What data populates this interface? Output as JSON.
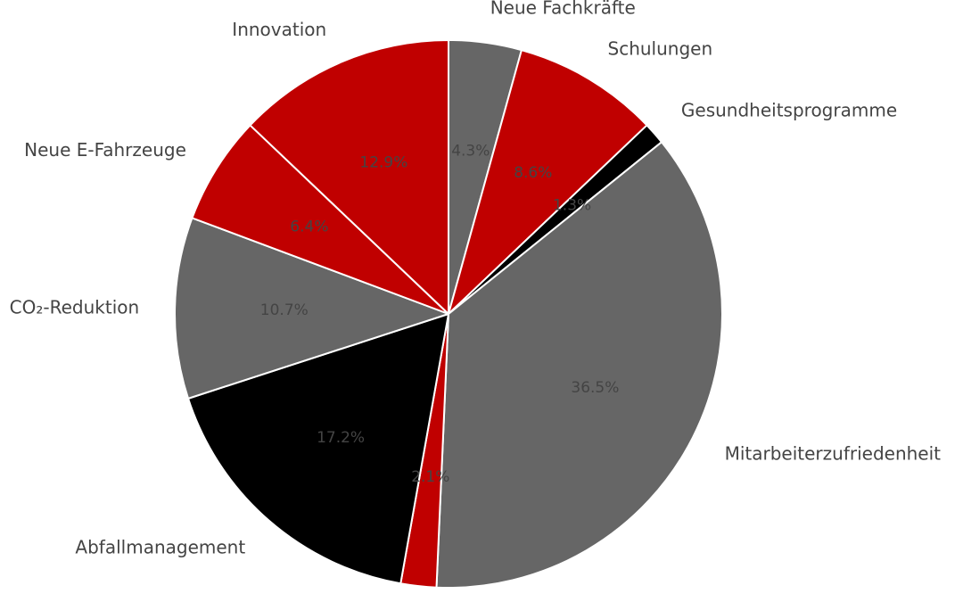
{
  "chart_data": {
    "type": "pie",
    "start_angle_deg": 90,
    "direction": "clockwise",
    "slices": [
      {
        "label": "Neue Fachkräfte",
        "value": 4.3,
        "pct_label": "4.3%",
        "color": "#666666"
      },
      {
        "label": "Schulungen",
        "value": 8.6,
        "pct_label": "8.6%",
        "color": "#c00000"
      },
      {
        "label": "Gesundheitsprogramme",
        "value": 1.3,
        "pct_label": "1.3%",
        "color": "#000000"
      },
      {
        "label": "Mitarbeiterzufriedenheit",
        "value": 36.5,
        "pct_label": "36.5%",
        "color": "#666666"
      },
      {
        "label": "",
        "value": 2.1,
        "pct_label": "2.1%",
        "color": "#c00000"
      },
      {
        "label": "Abfallmanagement",
        "value": 17.2,
        "pct_label": "17.2%",
        "color": "#000000"
      },
      {
        "label": "CO₂-Reduktion",
        "value": 10.7,
        "pct_label": "10.7%",
        "color": "#666666"
      },
      {
        "label": "Neue E-Fahrzeuge",
        "value": 6.4,
        "pct_label": "6.4%",
        "color": "#c00000"
      },
      {
        "label": "Innovation",
        "value": 12.9,
        "pct_label": "12.9%",
        "color": "#c00000"
      }
    ]
  }
}
